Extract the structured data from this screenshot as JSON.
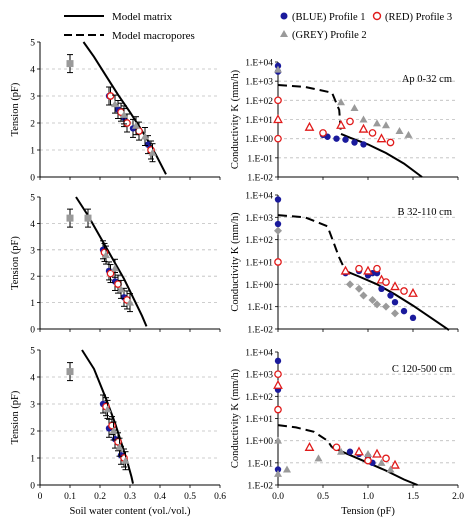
{
  "legend": {
    "model_matrix": "Model matrix",
    "model_macropores": "Model macropores",
    "blue": "(BLUE) Profile 1",
    "red": "(RED) Profile 3",
    "grey": "(GREY) Profile 2"
  },
  "colors": {
    "blue": "#1a1a9c",
    "red": "#e01b1b",
    "grey": "#9a9a9a",
    "dark": "#000000"
  },
  "chart_data": [
    {
      "type": "scatter",
      "panel": "left-top",
      "annotation": "",
      "xlabel": "",
      "ylabel": "Tension (pF)",
      "xlim": [
        0,
        0.6
      ],
      "ylim": [
        0,
        5
      ],
      "yticks": [
        "0",
        "1",
        "2",
        "3",
        "4",
        "5"
      ],
      "series": [
        {
          "name": "Model matrix",
          "style": "solid",
          "x": [
            0.145,
            0.18,
            0.22,
            0.26,
            0.3,
            0.335,
            0.365,
            0.39,
            0.42
          ],
          "y": [
            5.0,
            4.45,
            3.75,
            3.05,
            2.4,
            1.8,
            1.25,
            0.75,
            0.1
          ]
        },
        {
          "name": "(GREY) Profile 2",
          "marker": "square",
          "x": [
            0.1
          ],
          "y": [
            4.2
          ]
        },
        {
          "name": "(BLUE) Profile 1",
          "marker": "circle",
          "x": [
            0.23,
            0.26,
            0.28,
            0.31,
            0.36
          ],
          "y": [
            3.0,
            2.5,
            2.2,
            1.8,
            1.2
          ]
        },
        {
          "name": "(RED) Profile 3",
          "marker": "open-circle",
          "x": [
            0.235,
            0.27,
            0.29,
            0.33,
            0.37
          ],
          "y": [
            3.0,
            2.4,
            2.0,
            1.7,
            1.0
          ]
        },
        {
          "name": "(GREY) Profile 2",
          "marker": "triangle",
          "x": [
            0.25,
            0.28,
            0.32,
            0.35,
            0.375
          ],
          "y": [
            2.7,
            2.3,
            1.9,
            1.5,
            0.9
          ]
        }
      ]
    },
    {
      "type": "scatter",
      "panel": "right-top",
      "annotation": "Ap 0-32 cm",
      "xlabel": "",
      "ylabel": "Conductivity K (mm/h)",
      "xlim": [
        0,
        2.0
      ],
      "ylim_log10": [
        -2,
        4
      ],
      "yticks": [
        "1.E-02",
        "1.E-01",
        "1.E+00",
        "1.E+01",
        "1.E+02",
        "1.E+03",
        "1.E+04"
      ],
      "series": [
        {
          "name": "Model matrix",
          "style": "solid",
          "x": [
            0.7,
            0.8,
            1.0,
            1.2,
            1.4,
            1.6
          ],
          "y_log10": [
            0.25,
            0.05,
            -0.3,
            -0.75,
            -1.3,
            -2.0
          ]
        },
        {
          "name": "Model macropores",
          "style": "dashed",
          "x": [
            0.0,
            0.3,
            0.6,
            0.68,
            0.7
          ],
          "y_log10": [
            2.8,
            2.7,
            2.4,
            1.5,
            0.25
          ]
        },
        {
          "name": "(BLUE) Profile 1",
          "marker": "circle",
          "x": [
            0.0,
            0.0,
            0.5,
            0.55,
            0.65,
            0.75,
            0.85,
            0.95
          ],
          "y_log10": [
            3.8,
            3.5,
            0.2,
            0.1,
            0.0,
            -0.05,
            -0.2,
            -0.3
          ]
        },
        {
          "name": "(RED) Profile 3",
          "marker": "open",
          "x": [
            0.0,
            0.0,
            0.0,
            0.35,
            0.5,
            0.7,
            0.8,
            0.95,
            1.05,
            1.15,
            1.25
          ],
          "y_log10": [
            2.0,
            1.0,
            0.0,
            0.6,
            0.3,
            0.7,
            0.9,
            0.5,
            0.3,
            0.0,
            -0.2
          ]
        },
        {
          "name": "(GREY) Profile 2",
          "marker": "triangle",
          "x": [
            0.0,
            0.7,
            0.85,
            0.95,
            1.1,
            1.2,
            1.35,
            1.45
          ],
          "y_log10": [
            3.6,
            1.9,
            1.6,
            1.0,
            0.8,
            0.7,
            0.4,
            0.2
          ]
        }
      ]
    },
    {
      "type": "scatter",
      "panel": "left-middle",
      "annotation": "",
      "xlabel": "",
      "ylabel": "Tension (pF)",
      "xlim": [
        0,
        0.6
      ],
      "ylim": [
        0,
        5
      ],
      "yticks": [
        "0",
        "1",
        "2",
        "3",
        "4",
        "5"
      ],
      "series": [
        {
          "name": "Model matrix",
          "style": "solid",
          "x": [
            0.12,
            0.16,
            0.2,
            0.24,
            0.28,
            0.31,
            0.34,
            0.355
          ],
          "y": [
            5.0,
            4.3,
            3.5,
            2.7,
            1.9,
            1.2,
            0.5,
            0.1
          ]
        },
        {
          "name": "(GREY) Profile 2",
          "marker": "square",
          "x": [
            0.1,
            0.16
          ],
          "y": [
            4.2,
            4.2
          ]
        },
        {
          "name": "(BLUE) Profile 1",
          "marker": "circle",
          "x": [
            0.21,
            0.23,
            0.25,
            0.28
          ],
          "y": [
            3.0,
            2.2,
            1.8,
            1.2
          ]
        },
        {
          "name": "(RED) Profile 3",
          "marker": "open-circle",
          "x": [
            0.215,
            0.235,
            0.26,
            0.29
          ],
          "y": [
            2.9,
            2.1,
            1.7,
            1.1
          ]
        },
        {
          "name": "(GREY) Profile 2",
          "marker": "triangle",
          "x": [
            0.22,
            0.25,
            0.27,
            0.3
          ],
          "y": [
            2.8,
            2.3,
            1.5,
            1.0
          ]
        }
      ]
    },
    {
      "type": "scatter",
      "panel": "right-middle",
      "annotation": "B 32-110 cm",
      "xlabel": "",
      "ylabel": "Conductivity K (mm/h)",
      "xlim": [
        0,
        2.0
      ],
      "ylim_log10": [
        -2,
        4
      ],
      "yticks": [
        "1.E-02",
        "1.E-01",
        "1.E+00",
        "1.E+01",
        "1.E+02",
        "1.E+03",
        "1.E+04"
      ],
      "series": [
        {
          "name": "Model matrix",
          "style": "solid",
          "x": [
            0.75,
            0.9,
            1.1,
            1.3,
            1.5,
            1.7,
            1.9
          ],
          "y_log10": [
            0.6,
            0.35,
            0.0,
            -0.45,
            -0.95,
            -1.5,
            -2.05
          ]
        },
        {
          "name": "Model macropores",
          "style": "dashed",
          "x": [
            0.0,
            0.3,
            0.55,
            0.68,
            0.75
          ],
          "y_log10": [
            3.1,
            3.0,
            2.6,
            1.2,
            0.6
          ]
        },
        {
          "name": "(BLUE) Profile 1",
          "marker": "circle",
          "x": [
            0.0,
            0.0,
            0.75,
            0.9,
            1.0,
            1.05,
            1.1,
            1.15,
            1.25,
            1.3,
            1.4,
            1.5
          ],
          "y_log10": [
            3.8,
            2.7,
            0.5,
            0.6,
            0.4,
            0.5,
            0.5,
            -0.2,
            -0.5,
            -0.8,
            -1.2,
            -1.5
          ]
        },
        {
          "name": "(RED) Profile 3",
          "marker": "open",
          "x": [
            0.0,
            0.75,
            0.9,
            1.0,
            1.1,
            1.15,
            1.2,
            1.3,
            1.4,
            1.5
          ],
          "y_log10": [
            1.0,
            0.6,
            0.7,
            0.6,
            0.7,
            0.2,
            0.1,
            -0.1,
            -0.3,
            -0.4
          ]
        },
        {
          "name": "(GREY) Profile 2",
          "marker": "diamond",
          "x": [
            0.0,
            0.8,
            0.9,
            0.95,
            1.05,
            1.1,
            1.2,
            1.3
          ],
          "y_log10": [
            2.4,
            0.0,
            -0.2,
            -0.5,
            -0.7,
            -0.9,
            -1.0,
            -1.3
          ]
        }
      ]
    },
    {
      "type": "scatter",
      "panel": "left-bottom",
      "annotation": "",
      "xlabel": "Soil water content (vol./vol.)",
      "ylabel": "Tension (pF)",
      "xlim": [
        0,
        0.6
      ],
      "ylim": [
        0,
        5
      ],
      "xticks": [
        "0",
        "0.1",
        "0.2",
        "0.3",
        "0.4",
        "0.5",
        "0.6"
      ],
      "yticks": [
        "0",
        "1",
        "2",
        "3",
        "4",
        "5"
      ],
      "series": [
        {
          "name": "Model matrix",
          "style": "solid",
          "x": [
            0.14,
            0.18,
            0.22,
            0.25,
            0.27,
            0.29,
            0.305,
            0.31
          ],
          "y": [
            5.0,
            4.3,
            3.2,
            2.3,
            1.6,
            0.9,
            0.3,
            0.05
          ]
        },
        {
          "name": "(GREY) Profile 2",
          "marker": "square",
          "x": [
            0.1
          ],
          "y": [
            4.2
          ]
        },
        {
          "name": "(BLUE) Profile 1",
          "marker": "circle",
          "x": [
            0.21,
            0.23,
            0.25,
            0.27
          ],
          "y": [
            3.0,
            2.1,
            1.7,
            1.1
          ]
        },
        {
          "name": "(RED) Profile 3",
          "marker": "open-circle",
          "x": [
            0.22,
            0.24,
            0.26,
            0.28
          ],
          "y": [
            2.9,
            2.2,
            1.6,
            1.0
          ]
        },
        {
          "name": "(GREY) Profile 2",
          "marker": "triangle",
          "x": [
            0.225,
            0.245,
            0.265,
            0.285
          ],
          "y": [
            2.8,
            2.0,
            1.4,
            0.9
          ]
        }
      ]
    },
    {
      "type": "scatter",
      "panel": "right-bottom",
      "annotation": "C 120-500 cm",
      "xlabel": "Tension (pF)",
      "ylabel": "Conductivity K (mm/h)",
      "xlim": [
        0,
        2.0
      ],
      "ylim_log10": [
        -2,
        4
      ],
      "xticks": [
        "0.0",
        "0.5",
        "1.0",
        "1.5",
        "2.0"
      ],
      "yticks": [
        "1.E-02",
        "1.E-01",
        "1.E+00",
        "1.E+01",
        "1.E+02",
        "1.E+03",
        "1.E+04"
      ],
      "series": [
        {
          "name": "Model matrix",
          "style": "solid",
          "x": [
            0.6,
            0.8,
            1.0,
            1.2,
            1.4,
            1.55
          ],
          "y_log10": [
            -0.3,
            -0.65,
            -1.0,
            -1.35,
            -1.75,
            -2.0
          ]
        },
        {
          "name": "Model macropores",
          "style": "dashed",
          "x": [
            0.0,
            0.2,
            0.4,
            0.55,
            0.6
          ],
          "y_log10": [
            0.7,
            0.6,
            0.4,
            0.0,
            -0.3
          ]
        },
        {
          "name": "(BLUE) Profile 1",
          "marker": "circle",
          "x": [
            0.0,
            0.0,
            0.0,
            0.8,
            0.9,
            1.0,
            1.05
          ],
          "y_log10": [
            3.6,
            2.3,
            -1.3,
            -0.5,
            -0.6,
            -0.7,
            -1.0
          ]
        },
        {
          "name": "(RED) Profile 3",
          "marker": "open",
          "x": [
            0.0,
            0.0,
            0.0,
            0.35,
            0.65,
            0.9,
            1.0,
            1.1,
            1.2,
            1.3
          ],
          "y_log10": [
            3.0,
            2.5,
            1.4,
            -0.3,
            -0.3,
            -0.5,
            -0.9,
            -0.6,
            -0.8,
            -1.1
          ]
        },
        {
          "name": "(GREY) Profile 2",
          "marker": "triangle",
          "x": [
            0.0,
            0.0,
            0.1,
            0.45,
            0.7,
            1.0,
            1.15,
            1.25
          ],
          "y_log10": [
            0.0,
            -1.5,
            -1.3,
            -0.8,
            -0.5,
            -0.6,
            -1.0,
            -1.3
          ]
        }
      ]
    }
  ]
}
